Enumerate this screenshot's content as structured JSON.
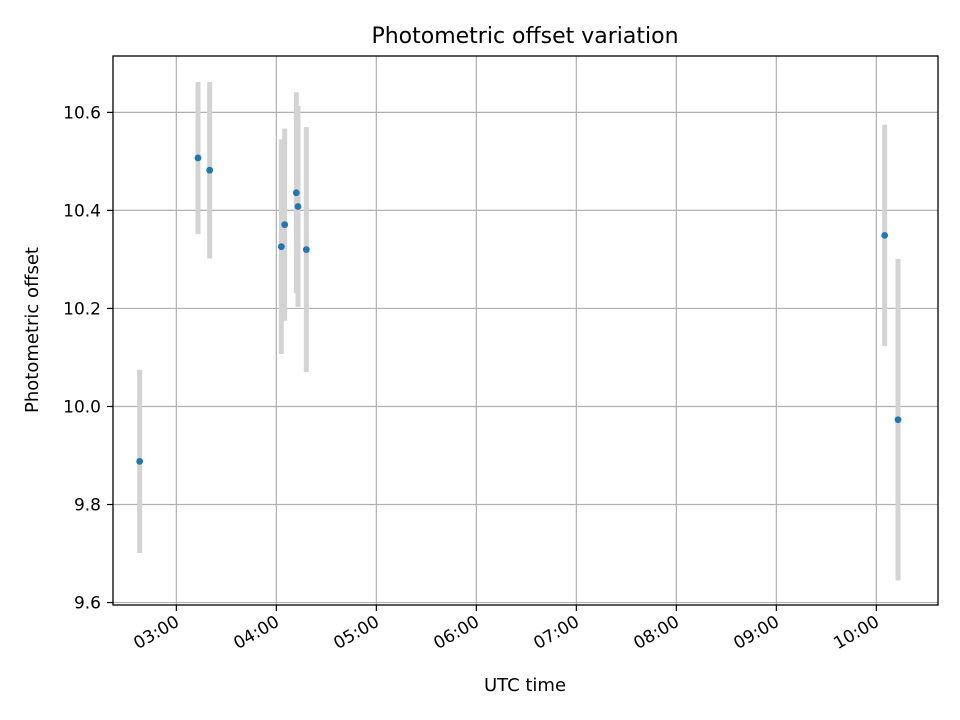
{
  "colors": {
    "point": "#1f77b4",
    "errorbar": "#d3d3d3",
    "grid": "#b0b0b0"
  },
  "chart_data": {
    "type": "scatter",
    "title": "Photometric offset variation",
    "xlabel": "UTC time",
    "ylabel": "Photometric offset",
    "grid": true,
    "xlim": [
      "02:22",
      "10:37"
    ],
    "ylim": [
      9.595,
      10.715
    ],
    "x_ticks": [
      "03:00",
      "04:00",
      "05:00",
      "06:00",
      "07:00",
      "08:00",
      "09:00",
      "10:00"
    ],
    "y_ticks": [
      "9.6",
      "9.8",
      "10.0",
      "10.2",
      "10.4",
      "10.6"
    ],
    "points": [
      {
        "x": "02:38",
        "y": 9.888,
        "err": 0.187
      },
      {
        "x": "03:13",
        "y": 10.507,
        "err": 0.155
      },
      {
        "x": "03:20",
        "y": 10.482,
        "err": 0.18
      },
      {
        "x": "04:03",
        "y": 10.326,
        "err": 0.219
      },
      {
        "x": "04:05",
        "y": 10.371,
        "err": 0.196
      },
      {
        "x": "04:12",
        "y": 10.436,
        "err": 0.205
      },
      {
        "x": "04:13",
        "y": 10.408,
        "err": 0.205
      },
      {
        "x": "04:18",
        "y": 10.32,
        "err": 0.25
      },
      {
        "x": "10:05",
        "y": 10.349,
        "err": 0.226
      },
      {
        "x": "10:13",
        "y": 9.973,
        "err": 0.328
      }
    ]
  }
}
